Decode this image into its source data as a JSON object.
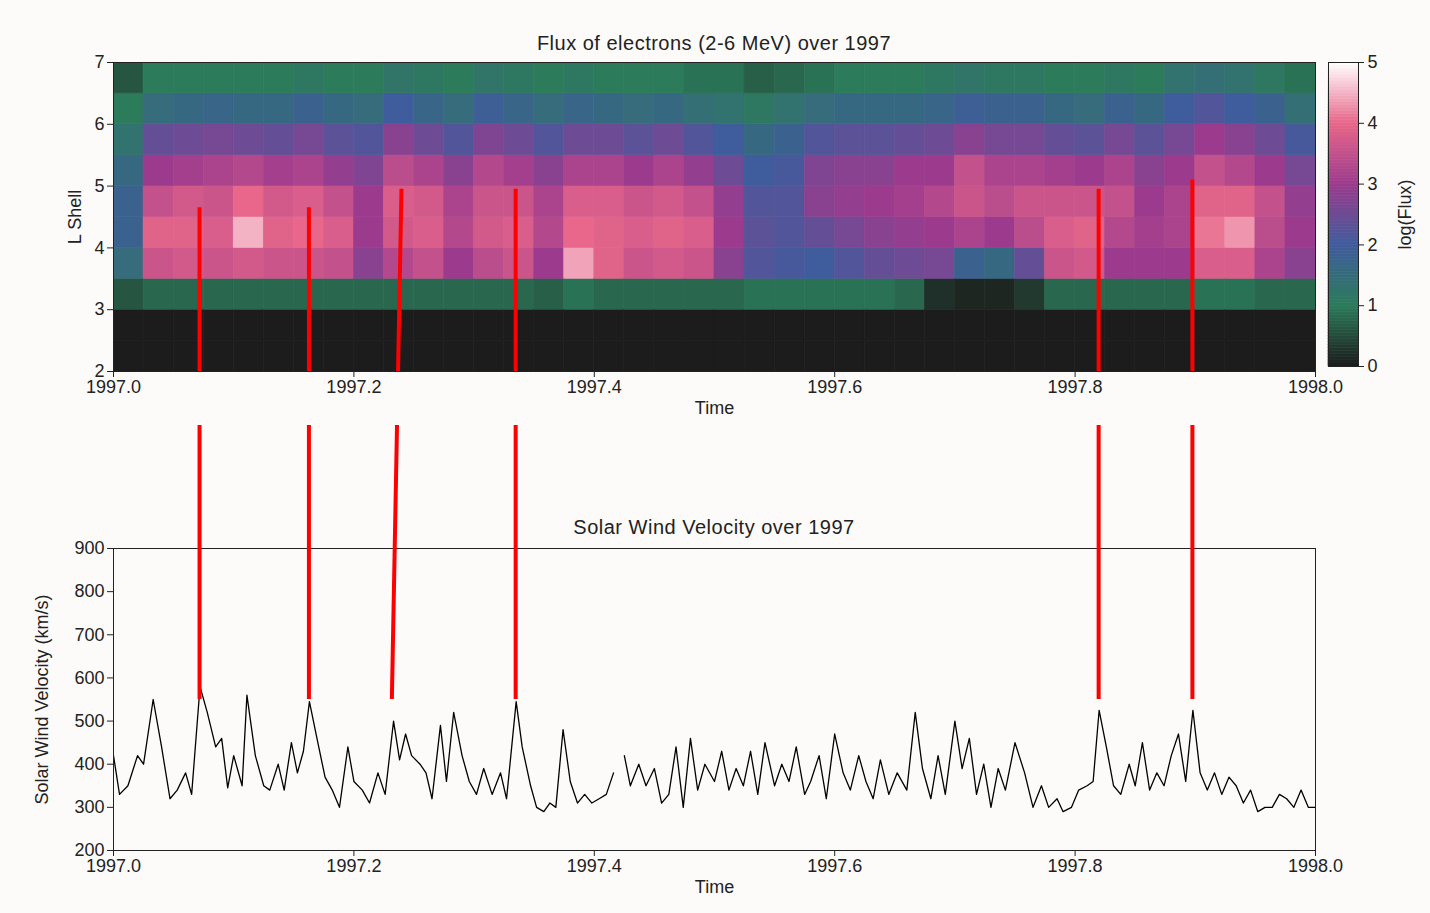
{
  "chart_data": [
    {
      "type": "heatmap",
      "title": "Flux of electrons (2-6 MeV) over 1997",
      "x_label": "Time",
      "y_label": "L Shell",
      "xlim": [
        1997,
        1998
      ],
      "xticks": [
        {
          "value": 1997,
          "label": "1997.0"
        },
        1997.2,
        1997.4,
        1997.6,
        1997.8,
        {
          "value": 1998,
          "label": "1998.0"
        }
      ],
      "ylim": [
        2,
        7
      ],
      "yticks": [
        2,
        3,
        4,
        5,
        6,
        7
      ],
      "time_edges": [
        1997,
        1997.025,
        1997.05,
        1997.075,
        1997.1,
        1997.125,
        1997.15,
        1997.175,
        1997.2,
        1997.225,
        1997.25,
        1997.275,
        1997.3,
        1997.325,
        1997.35,
        1997.375,
        1997.4,
        1997.425,
        1997.45,
        1997.475,
        1997.5,
        1997.525,
        1997.55,
        1997.575,
        1997.6,
        1997.625,
        1997.65,
        1997.675,
        1997.7,
        1997.725,
        1997.75,
        1997.775,
        1997.8,
        1997.825,
        1997.85,
        1997.875,
        1997.9,
        1997.925,
        1997.95,
        1997.975,
        1998
      ],
      "lshell_edges": [
        2,
        2.5,
        3,
        3.5,
        4,
        4.5,
        5,
        5.5,
        6,
        6.5,
        7
      ],
      "log_flux": [
        [
          0,
          0,
          0.6,
          1.5,
          1.8,
          1.8,
          1.6,
          1.3,
          1.0,
          0.6
        ],
        [
          0,
          0,
          0.8,
          3.6,
          3.9,
          3.5,
          3.0,
          2.4,
          1.5,
          1.0
        ],
        [
          0,
          0,
          0.8,
          3.7,
          3.9,
          3.7,
          3.1,
          2.5,
          1.6,
          1.0
        ],
        [
          0,
          0,
          0.8,
          3.6,
          3.8,
          3.6,
          3.2,
          2.6,
          1.7,
          1.0
        ],
        [
          0,
          0,
          0.8,
          3.7,
          4.5,
          4.0,
          3.3,
          2.5,
          1.6,
          1.0
        ],
        [
          0,
          0,
          0.8,
          3.6,
          3.9,
          3.7,
          3.1,
          2.4,
          1.6,
          1.0
        ],
        [
          0,
          0,
          0.8,
          3.6,
          4.0,
          3.8,
          3.2,
          2.6,
          1.8,
          1.1
        ],
        [
          0,
          0,
          0.8,
          3.5,
          3.8,
          3.5,
          2.9,
          2.3,
          1.6,
          1.0
        ],
        [
          0,
          0,
          0.8,
          2.8,
          3.0,
          3.0,
          2.7,
          2.2,
          1.5,
          1.0
        ],
        [
          0,
          0,
          0.8,
          3.3,
          3.7,
          3.8,
          3.4,
          2.8,
          2.0,
          1.2
        ],
        [
          0,
          0,
          0.8,
          3.5,
          3.8,
          3.7,
          3.2,
          2.5,
          1.7,
          1.1
        ],
        [
          0,
          0,
          0.8,
          3.0,
          3.3,
          3.2,
          2.8,
          2.2,
          1.5,
          1.0
        ],
        [
          0,
          0,
          0.8,
          3.4,
          3.7,
          3.6,
          3.3,
          2.7,
          1.9,
          1.2
        ],
        [
          0,
          0,
          0.8,
          3.6,
          3.8,
          3.6,
          3.1,
          2.5,
          1.7,
          1.1
        ],
        [
          0,
          0,
          0.7,
          3.0,
          3.3,
          3.2,
          2.8,
          2.2,
          1.5,
          1.0
        ],
        [
          0,
          0,
          0.9,
          4.4,
          4.0,
          3.8,
          3.2,
          2.5,
          1.7,
          1.1
        ],
        [
          0,
          0,
          0.8,
          3.9,
          3.9,
          3.8,
          3.2,
          2.5,
          1.6,
          1.0
        ],
        [
          0,
          0,
          0.8,
          3.6,
          3.8,
          3.6,
          3.0,
          2.3,
          1.5,
          1.0
        ],
        [
          0,
          0,
          0.8,
          3.7,
          3.9,
          3.7,
          3.2,
          2.5,
          1.6,
          1.0
        ],
        [
          0,
          0,
          0.8,
          3.6,
          3.8,
          3.5,
          2.9,
          2.2,
          1.4,
          0.9
        ],
        [
          0,
          0,
          0.8,
          2.8,
          3.0,
          2.9,
          2.5,
          2.0,
          1.3,
          0.9
        ],
        [
          0,
          0,
          0.9,
          2.2,
          2.3,
          2.2,
          2.0,
          1.6,
          1.1,
          0.7
        ],
        [
          0,
          0,
          0.9,
          2.1,
          2.2,
          2.2,
          2.1,
          1.8,
          1.3,
          0.8
        ],
        [
          0,
          0,
          0.9,
          2.0,
          2.4,
          2.8,
          2.7,
          2.2,
          1.5,
          0.9
        ],
        [
          0,
          0,
          0.9,
          2.2,
          2.6,
          2.9,
          2.8,
          2.3,
          1.6,
          1.0
        ],
        [
          0,
          0,
          0.9,
          2.4,
          2.8,
          3.0,
          2.8,
          2.3,
          1.6,
          1.0
        ],
        [
          0,
          0,
          0.8,
          2.5,
          2.9,
          3.1,
          3.0,
          2.4,
          1.6,
          1.0
        ],
        [
          0,
          0,
          0.2,
          2.6,
          3.0,
          3.3,
          3.0,
          2.5,
          1.7,
          1.1
        ],
        [
          0,
          0,
          0.1,
          1.8,
          3.2,
          3.6,
          3.5,
          2.8,
          1.9,
          1.2
        ],
        [
          0,
          0,
          0.1,
          1.6,
          3.0,
          3.4,
          3.2,
          2.6,
          1.8,
          1.1
        ],
        [
          0,
          0,
          0.3,
          2.4,
          3.4,
          3.6,
          3.2,
          2.6,
          1.8,
          1.1
        ],
        [
          0,
          0,
          0.8,
          3.6,
          3.8,
          3.6,
          3.1,
          2.4,
          1.6,
          1.0
        ],
        [
          0,
          0,
          0.8,
          3.7,
          3.9,
          3.6,
          3.0,
          2.3,
          1.5,
          1.0
        ],
        [
          0,
          0,
          0.8,
          3.0,
          3.3,
          3.5,
          3.2,
          2.6,
          1.8,
          1.1
        ],
        [
          0,
          0,
          0.8,
          3.0,
          3.1,
          3.0,
          2.8,
          2.3,
          1.6,
          1.0
        ],
        [
          0,
          0,
          0.8,
          3.0,
          3.2,
          3.2,
          3.0,
          2.6,
          2.0,
          1.3
        ],
        [
          0,
          0,
          0.9,
          3.8,
          4.1,
          3.9,
          3.5,
          3.0,
          2.2,
          1.4
        ],
        [
          0,
          0,
          0.9,
          3.8,
          4.3,
          3.9,
          3.3,
          2.8,
          2.0,
          1.3
        ],
        [
          0,
          0,
          0.8,
          3.2,
          3.4,
          3.5,
          3.0,
          2.5,
          1.8,
          1.1
        ],
        [
          0,
          0,
          0.8,
          2.8,
          3.0,
          2.9,
          2.6,
          2.1,
          1.4,
          0.9
        ]
      ],
      "colorbar": {
        "label": "log(Flux)",
        "range": [
          0,
          5
        ],
        "ticks": [
          0,
          1,
          2,
          3,
          4,
          5
        ]
      }
    },
    {
      "type": "line",
      "title": "Solar Wind Velocity over 1997",
      "x_label": "Time",
      "y_label": "Solar Wind Velocity (km/s)",
      "xlim": [
        1997,
        1998
      ],
      "xticks": [
        {
          "value": 1997,
          "label": "1997.0"
        },
        1997.2,
        1997.4,
        1997.6,
        1997.8,
        {
          "value": 1998,
          "label": "1998.0"
        }
      ],
      "ylim": [
        200,
        900
      ],
      "yticks": [
        200,
        300,
        400,
        500,
        600,
        700,
        800,
        900
      ],
      "color": "#000000",
      "x": [
        1997,
        1997.005,
        1997.012,
        1997.02,
        1997.025,
        1997.033,
        1997.04,
        1997.047,
        1997.053,
        1997.06,
        1997.065,
        1997.072,
        1997.078,
        1997.085,
        1997.09,
        1997.095,
        1997.1,
        1997.107,
        1997.111,
        1997.118,
        1997.125,
        1997.13,
        1997.137,
        1997.142,
        1997.148,
        1997.153,
        1997.158,
        1997.163,
        1997.17,
        1997.176,
        1997.182,
        1997.188,
        1997.195,
        1997.2,
        1997.207,
        1997.213,
        1997.22,
        1997.226,
        1997.233,
        1997.238,
        1997.243,
        1997.248,
        1997.255,
        1997.26,
        1997.265,
        1997.272,
        1997.277,
        1997.283,
        1997.29,
        1997.296,
        1997.302,
        1997.308,
        1997.315,
        1997.322,
        1997.327,
        1997.335,
        1997.34,
        1997.347,
        1997.352,
        1997.358,
        1997.363,
        1997.368,
        1997.374,
        1997.38,
        1997.386,
        1997.392,
        1997.398,
        1997.404,
        1997.41,
        1997.416,
        1997.42,
        1997.425,
        1997.43,
        1997.437,
        1997.443,
        1997.45,
        1997.456,
        1997.462,
        1997.468,
        1997.474,
        1997.48,
        1997.486,
        1997.492,
        1997.5,
        1997.506,
        1997.512,
        1997.518,
        1997.524,
        1997.53,
        1997.536,
        1997.542,
        1997.55,
        1997.556,
        1997.562,
        1997.568,
        1997.575,
        1997.58,
        1997.587,
        1997.593,
        1997.6,
        1997.607,
        1997.613,
        1997.62,
        1997.626,
        1997.632,
        1997.638,
        1997.645,
        1997.652,
        1997.66,
        1997.667,
        1997.673,
        1997.68,
        1997.686,
        1997.692,
        1997.7,
        1997.706,
        1997.712,
        1997.718,
        1997.724,
        1997.73,
        1997.736,
        1997.742,
        1997.75,
        1997.758,
        1997.765,
        1997.772,
        1997.778,
        1997.785,
        1997.79,
        1997.797,
        1997.803,
        1997.81,
        1997.815,
        1997.82,
        1997.826,
        1997.832,
        1997.838,
        1997.845,
        1997.85,
        1997.856,
        1997.862,
        1997.868,
        1997.874,
        1997.88,
        1997.886,
        1997.892,
        1997.898,
        1997.904,
        1997.91,
        1997.916,
        1997.922,
        1997.928,
        1997.934,
        1997.94,
        1997.946,
        1997.952,
        1997.958,
        1997.964,
        1997.97,
        1997.976,
        1997.982,
        1997.988,
        1997.994,
        1998
      ],
      "values": [
        420,
        330,
        350,
        420,
        400,
        550,
        440,
        320,
        340,
        380,
        330,
        580,
        520,
        440,
        460,
        345,
        420,
        350,
        560,
        420,
        350,
        340,
        400,
        340,
        450,
        380,
        430,
        545,
        450,
        370,
        340,
        300,
        440,
        360,
        340,
        310,
        380,
        330,
        500,
        410,
        470,
        420,
        400,
        380,
        320,
        490,
        360,
        520,
        420,
        360,
        330,
        390,
        330,
        380,
        320,
        545,
        440,
        350,
        300,
        290,
        310,
        300,
        480,
        360,
        310,
        330,
        310,
        320,
        330,
        380,
        null,
        420,
        350,
        400,
        350,
        390,
        310,
        330,
        440,
        300,
        460,
        340,
        400,
        360,
        430,
        340,
        390,
        350,
        430,
        330,
        450,
        350,
        400,
        360,
        440,
        330,
        360,
        420,
        320,
        470,
        380,
        340,
        420,
        360,
        320,
        410,
        330,
        380,
        340,
        520,
        390,
        320,
        420,
        330,
        500,
        390,
        460,
        330,
        400,
        300,
        390,
        340,
        450,
        380,
        300,
        350,
        300,
        320,
        290,
        300,
        340,
        350,
        360,
        525,
        440,
        350,
        330,
        400,
        350,
        450,
        340,
        380,
        350,
        420,
        470,
        360,
        525,
        380,
        340,
        380,
        330,
        370,
        350,
        310,
        340,
        290,
        300,
        300,
        330,
        320,
        300,
        340,
        300,
        300
      ],
      "connectors": [
        {
          "time_top": 1997.072,
          "lshell_top": 4.65,
          "time": 1997.072,
          "velocity": 550
        },
        {
          "time_top": 1997.163,
          "lshell_top": 4.65,
          "time": 1997.163,
          "velocity": 550
        },
        {
          "time_top": 1997.24,
          "lshell_top": 4.95,
          "time": 1997.232,
          "velocity": 550
        },
        {
          "time_top": 1997.335,
          "lshell_top": 4.95,
          "time": 1997.335,
          "velocity": 550
        },
        {
          "time_top": 1997.82,
          "lshell_top": 4.95,
          "time": 1997.82,
          "velocity": 550
        },
        {
          "time_top": 1997.898,
          "lshell_top": 5.1,
          "time": 1997.898,
          "velocity": 550
        }
      ]
    }
  ]
}
